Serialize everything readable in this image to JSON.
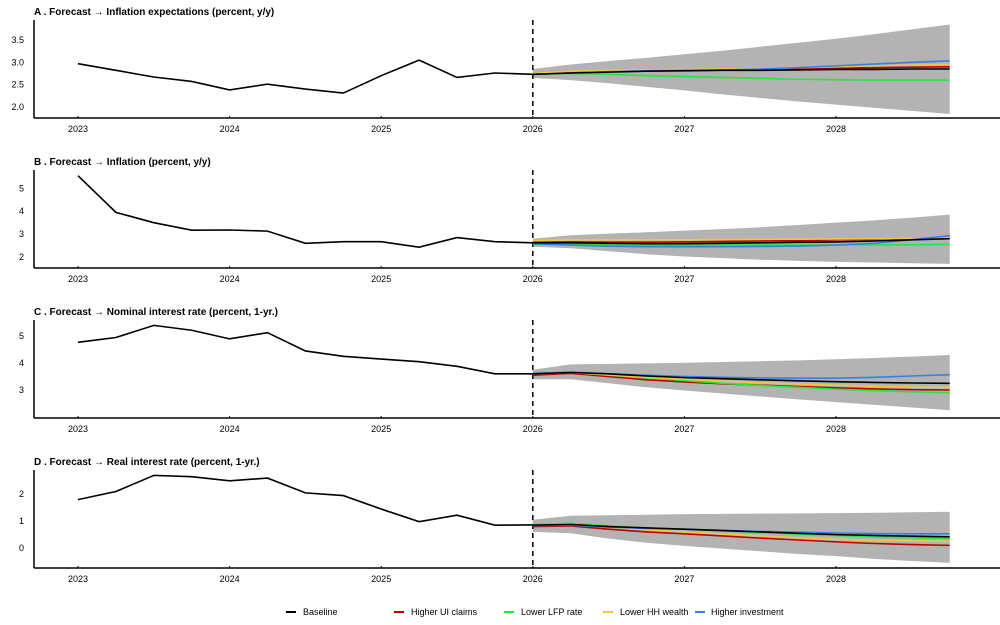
{
  "legend": [
    {
      "name": "Baseline",
      "color": "#000000"
    },
    {
      "name": "Higher UI claims",
      "color": "#c00000"
    },
    {
      "name": "Lower LFP rate",
      "color": "#22e83a"
    },
    {
      "name": "Lower HH wealth",
      "color": "#f5c542"
    },
    {
      "name": "Higher investment",
      "color": "#3a7fe0"
    }
  ],
  "band_color": "#b3b3b3",
  "chart_data": [
    {
      "type": "line",
      "title": "A . Forecast → Inflation expectations (percent, y/y)",
      "xticks": [
        "2023",
        "2024",
        "2025",
        "2026",
        "2027",
        "2028"
      ],
      "yticks": [
        "2.0",
        "2.5",
        "3.0",
        "3.5"
      ],
      "ylim": [
        1.75,
        3.95
      ],
      "forecast_start": "2026",
      "history": {
        "x_start": "2023Q1",
        "values": [
          2.97,
          2.82,
          2.67,
          2.57,
          2.38,
          2.51,
          2.4,
          2.31,
          2.7,
          3.05,
          2.66,
          2.76,
          2.73
        ]
      },
      "forecast": {
        "x_start": "2026Q1",
        "band_upper": [
          2.85,
          2.95,
          3.03,
          3.1,
          3.18,
          3.26,
          3.35,
          3.44,
          3.53,
          3.63,
          3.74,
          3.85
        ],
        "band_lower": [
          2.65,
          2.6,
          2.53,
          2.45,
          2.37,
          2.28,
          2.2,
          2.12,
          2.05,
          1.98,
          1.91,
          1.84
        ],
        "series": [
          {
            "name": "Baseline",
            "values": [
              2.73,
              2.76,
              2.78,
              2.8,
              2.81,
              2.82,
              2.82,
              2.83,
              2.84,
              2.84,
              2.85,
              2.85
            ]
          },
          {
            "name": "Higher UI claims",
            "values": [
              2.73,
              2.77,
              2.8,
              2.82,
              2.83,
              2.84,
              2.85,
              2.86,
              2.87,
              2.88,
              2.89,
              2.9
            ]
          },
          {
            "name": "Lower LFP rate",
            "values": [
              2.73,
              2.75,
              2.73,
              2.7,
              2.68,
              2.66,
              2.64,
              2.62,
              2.61,
              2.6,
              2.6,
              2.6
            ]
          },
          {
            "name": "Lower HH wealth",
            "values": [
              2.75,
              2.8,
              2.82,
              2.83,
              2.84,
              2.85,
              2.86,
              2.88,
              2.9,
              2.92,
              2.94,
              2.95
            ]
          },
          {
            "name": "Higher investment",
            "values": [
              2.73,
              2.76,
              2.79,
              2.81,
              2.82,
              2.83,
              2.85,
              2.88,
              2.92,
              2.96,
              3.0,
              3.03
            ]
          }
        ]
      }
    },
    {
      "type": "line",
      "title": "B . Forecast → Inflation (percent, y/y)",
      "xticks": [
        "2023",
        "2024",
        "2025",
        "2026",
        "2027",
        "2028"
      ],
      "yticks": [
        "2",
        "3",
        "4",
        "5"
      ],
      "ylim": [
        1.52,
        5.8
      ],
      "forecast_start": "2026",
      "history": {
        "x_start": "2023Q1",
        "values": [
          5.55,
          3.95,
          3.5,
          3.17,
          3.18,
          3.13,
          2.6,
          2.67,
          2.67,
          2.43,
          2.85,
          2.67,
          2.62
        ]
      },
      "forecast": {
        "x_start": "2026Q1",
        "band_upper": [
          2.8,
          2.95,
          3.02,
          3.08,
          3.15,
          3.22,
          3.3,
          3.4,
          3.5,
          3.6,
          3.72,
          3.85
        ],
        "band_lower": [
          2.45,
          2.38,
          2.25,
          2.12,
          2.02,
          1.95,
          1.88,
          1.83,
          1.79,
          1.76,
          1.73,
          1.7
        ],
        "series": [
          {
            "name": "Baseline",
            "values": [
              2.62,
              2.62,
              2.6,
              2.58,
              2.58,
              2.6,
              2.62,
              2.64,
              2.66,
              2.7,
              2.75,
              2.8
            ]
          },
          {
            "name": "Higher UI claims",
            "values": [
              2.65,
              2.66,
              2.65,
              2.65,
              2.66,
              2.68,
              2.7,
              2.72,
              2.75,
              2.78,
              2.82,
              2.85
            ]
          },
          {
            "name": "Lower LFP rate",
            "values": [
              2.55,
              2.55,
              2.53,
              2.52,
              2.52,
              2.52,
              2.52,
              2.52,
              2.53,
              2.53,
              2.54,
              2.55
            ]
          },
          {
            "name": "Lower HH wealth",
            "values": [
              2.72,
              2.75,
              2.75,
              2.75,
              2.75,
              2.76,
              2.77,
              2.78,
              2.79,
              2.8,
              2.82,
              2.85
            ]
          },
          {
            "name": "Higher investment",
            "values": [
              2.58,
              2.52,
              2.47,
              2.45,
              2.45,
              2.45,
              2.46,
              2.48,
              2.52,
              2.6,
              2.75,
              2.93
            ]
          }
        ]
      }
    },
    {
      "type": "line",
      "title": "C . Forecast → Nominal interest rate (percent, 1-yr.)",
      "xticks": [
        "2023",
        "2024",
        "2025",
        "2026",
        "2027",
        "2028"
      ],
      "yticks": [
        "3",
        "4",
        "5"
      ],
      "ylim": [
        1.96,
        5.6
      ],
      "forecast_start": "2026",
      "history": {
        "x_start": "2023Q1",
        "values": [
          4.77,
          4.95,
          5.4,
          5.22,
          4.9,
          5.13,
          4.45,
          4.25,
          4.15,
          4.05,
          3.88,
          3.6,
          3.6
        ]
      },
      "forecast": {
        "x_start": "2026Q1",
        "band_upper": [
          3.75,
          3.95,
          3.97,
          3.99,
          4.01,
          4.04,
          4.07,
          4.1,
          4.14,
          4.19,
          4.24,
          4.3
        ],
        "band_lower": [
          3.4,
          3.4,
          3.25,
          3.1,
          2.98,
          2.87,
          2.76,
          2.65,
          2.55,
          2.45,
          2.35,
          2.25
        ],
        "series": [
          {
            "name": "Baseline",
            "values": [
              3.6,
              3.65,
              3.6,
              3.52,
              3.46,
              3.42,
              3.38,
              3.34,
              3.31,
              3.28,
              3.26,
              3.25
            ]
          },
          {
            "name": "Higher UI claims",
            "values": [
              3.55,
              3.62,
              3.5,
              3.38,
              3.3,
              3.23,
              3.18,
              3.13,
              3.08,
              3.04,
              3.01,
              3.0
            ]
          },
          {
            "name": "Lower LFP rate",
            "values": [
              3.6,
              3.65,
              3.55,
              3.45,
              3.35,
              3.25,
              3.17,
              3.1,
              3.03,
              2.98,
              2.93,
              2.9
            ]
          },
          {
            "name": "Lower HH wealth",
            "values": [
              3.6,
              3.65,
              3.56,
              3.47,
              3.4,
              3.33,
              3.27,
              3.22,
              3.18,
              3.14,
              3.11,
              3.1
            ]
          },
          {
            "name": "Higher investment",
            "values": [
              3.62,
              3.66,
              3.6,
              3.55,
              3.5,
              3.47,
              3.45,
              3.44,
              3.44,
              3.47,
              3.52,
              3.57
            ]
          }
        ]
      }
    },
    {
      "type": "line",
      "title": "D . Forecast → Real interest rate (percent, 1-yr.)",
      "xticks": [
        "2023",
        "2024",
        "2025",
        "2026",
        "2027",
        "2028"
      ],
      "yticks": [
        "0",
        "1",
        "2"
      ],
      "ylim": [
        -0.74,
        2.9
      ],
      "forecast_start": "2026",
      "history": {
        "x_start": "2023Q1",
        "values": [
          1.8,
          2.1,
          2.7,
          2.65,
          2.5,
          2.6,
          2.05,
          1.95,
          1.45,
          0.98,
          1.22,
          0.85,
          0.86
        ]
      },
      "forecast": {
        "x_start": "2026Q1",
        "band_upper": [
          1.05,
          1.2,
          1.22,
          1.24,
          1.26,
          1.27,
          1.28,
          1.29,
          1.3,
          1.31,
          1.33,
          1.35
        ],
        "band_lower": [
          0.6,
          0.55,
          0.35,
          0.2,
          0.08,
          -0.02,
          -0.12,
          -0.22,
          -0.3,
          -0.4,
          -0.48,
          -0.55
        ],
        "series": [
          {
            "name": "Baseline",
            "values": [
              0.85,
              0.88,
              0.8,
              0.75,
              0.7,
              0.65,
              0.6,
              0.55,
              0.5,
              0.47,
              0.44,
              0.42
            ]
          },
          {
            "name": "Higher UI claims",
            "values": [
              0.8,
              0.82,
              0.7,
              0.6,
              0.53,
              0.45,
              0.37,
              0.3,
              0.23,
              0.17,
              0.13,
              0.1
            ]
          },
          {
            "name": "Lower LFP rate",
            "values": [
              0.88,
              0.92,
              0.82,
              0.75,
              0.7,
              0.64,
              0.58,
              0.52,
              0.47,
              0.42,
              0.38,
              0.35
            ]
          },
          {
            "name": "Lower HH wealth",
            "values": [
              0.85,
              0.9,
              0.78,
              0.68,
              0.6,
              0.52,
              0.45,
              0.38,
              0.33,
              0.29,
              0.27,
              0.25
            ]
          },
          {
            "name": "Higher investment",
            "values": [
              0.83,
              0.85,
              0.78,
              0.73,
              0.7,
              0.66,
              0.62,
              0.59,
              0.56,
              0.54,
              0.53,
              0.53
            ]
          }
        ]
      }
    }
  ]
}
